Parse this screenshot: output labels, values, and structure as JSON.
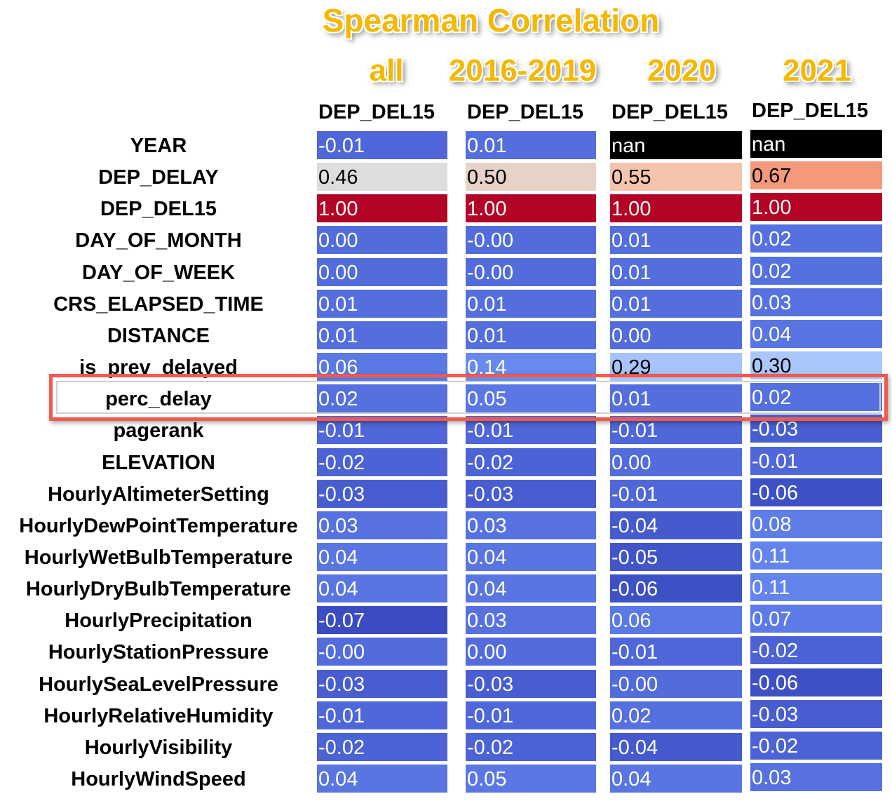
{
  "chart_data": {
    "type": "heatmap",
    "title": "Spearman Correlation",
    "groups": [
      "all",
      "2016-2019",
      "2020",
      "2021"
    ],
    "column_header": "DEP_DEL15",
    "highlighted_row": "perc_delay",
    "rows": [
      "YEAR",
      "DEP_DELAY",
      "DEP_DEL15",
      "DAY_OF_MONTH",
      "DAY_OF_WEEK",
      "CRS_ELAPSED_TIME",
      "DISTANCE",
      "is_prev_delayed",
      "perc_delay",
      "pagerank",
      "ELEVATION",
      "HourlyAltimeterSetting",
      "HourlyDewPointTemperature",
      "HourlyWetBulbTemperature",
      "HourlyDryBulbTemperature",
      "HourlyPrecipitation",
      "HourlyStationPressure",
      "HourlySeaLevelPressure",
      "HourlyRelativeHumidity",
      "HourlyVisibility",
      "HourlyWindSpeed"
    ],
    "series": [
      {
        "name": "all",
        "values": [
          "-0.01",
          "0.46",
          "1.00",
          "0.00",
          "0.00",
          "0.01",
          "0.01",
          "0.06",
          "0.02",
          "-0.01",
          "-0.02",
          "-0.03",
          "0.03",
          "0.04",
          "0.04",
          "-0.07",
          "-0.00",
          "-0.03",
          "-0.01",
          "-0.02",
          "0.04"
        ]
      },
      {
        "name": "2016-2019",
        "values": [
          "0.01",
          "0.50",
          "1.00",
          "-0.00",
          "-0.00",
          "0.01",
          "0.01",
          "0.14",
          "0.05",
          "-0.01",
          "-0.02",
          "-0.03",
          "0.03",
          "0.04",
          "0.04",
          "0.03",
          "0.00",
          "-0.03",
          "-0.01",
          "-0.02",
          "0.05"
        ]
      },
      {
        "name": "2020",
        "values": [
          "nan",
          "0.55",
          "1.00",
          "0.01",
          "0.01",
          "0.01",
          "0.00",
          "0.29",
          "0.01",
          "-0.01",
          "0.00",
          "-0.01",
          "-0.04",
          "-0.05",
          "-0.06",
          "0.06",
          "-0.01",
          "-0.00",
          "0.02",
          "-0.04",
          "0.04"
        ]
      },
      {
        "name": "2021",
        "values": [
          "nan",
          "0.67",
          "1.00",
          "0.02",
          "0.02",
          "0.03",
          "0.04",
          "0.30",
          "0.02",
          "-0.03",
          "-0.01",
          "-0.06",
          "0.08",
          "0.11",
          "0.11",
          "0.07",
          "-0.02",
          "-0.06",
          "-0.03",
          "-0.02",
          "0.03"
        ]
      }
    ],
    "colormap": "coolwarm",
    "nan_color": "#000000"
  }
}
